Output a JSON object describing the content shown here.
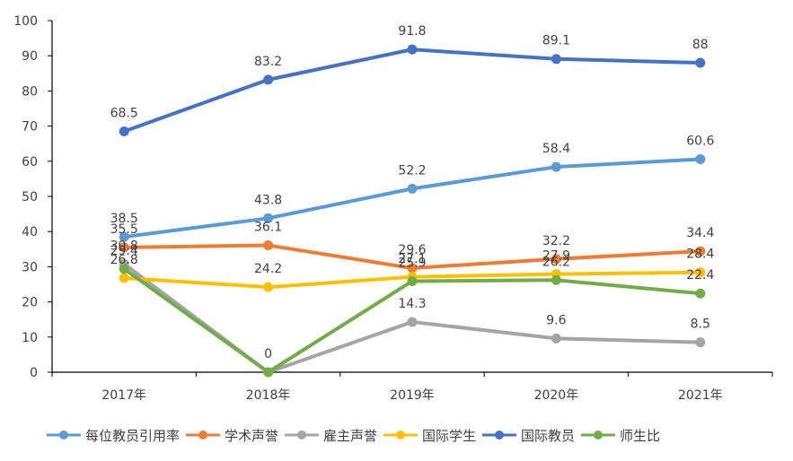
{
  "chart_data": {
    "type": "line",
    "categories": [
      "2017年",
      "2018年",
      "2019年",
      "2020年",
      "2021年"
    ],
    "ylim": [
      0,
      100
    ],
    "yticks": [
      0,
      10,
      20,
      30,
      40,
      50,
      60,
      70,
      80,
      90,
      100
    ],
    "grid": false,
    "legend_position": "bottom",
    "series": [
      {
        "name": "每位教员引用率",
        "color": "#5B9BD5",
        "values": [
          38.5,
          43.8,
          52.2,
          58.4,
          60.6
        ]
      },
      {
        "name": "学术声誉",
        "color": "#ED7D31",
        "values": [
          35.5,
          36.1,
          29.6,
          32.2,
          34.4
        ]
      },
      {
        "name": "雇主声誉",
        "color": "#A5A5A5",
        "values": [
          30.8,
          0,
          14.3,
          9.6,
          8.5
        ]
      },
      {
        "name": "国际学生",
        "color": "#FFC000",
        "values": [
          26.8,
          24.2,
          27.1,
          27.9,
          28.4
        ]
      },
      {
        "name": "国际教员",
        "color": "#4472C4",
        "values": [
          68.5,
          83.2,
          91.8,
          89.1,
          88
        ]
      },
      {
        "name": "师生比",
        "color": "#70AD47",
        "values": [
          29.4,
          0,
          25.9,
          26.2,
          22.4
        ]
      }
    ],
    "data_labels": [
      {
        "text": "68.5",
        "series": 4,
        "index": 0
      },
      {
        "text": "83.2",
        "series": 4,
        "index": 1
      },
      {
        "text": "91.8",
        "series": 4,
        "index": 2
      },
      {
        "text": "89.1",
        "series": 4,
        "index": 3
      },
      {
        "text": "88",
        "series": 4,
        "index": 4
      },
      {
        "text": "38.5",
        "series": 0,
        "index": 0
      },
      {
        "text": "43.8",
        "series": 0,
        "index": 1
      },
      {
        "text": "52.2",
        "series": 0,
        "index": 2
      },
      {
        "text": "58.4",
        "series": 0,
        "index": 3
      },
      {
        "text": "60.6",
        "series": 0,
        "index": 4
      },
      {
        "text": "35.5",
        "series": 1,
        "index": 0
      },
      {
        "text": "36.1",
        "series": 1,
        "index": 1
      },
      {
        "text": "29.6",
        "series": 1,
        "index": 2
      },
      {
        "text": "32.2",
        "series": 1,
        "index": 3
      },
      {
        "text": "34.4",
        "series": 1,
        "index": 4
      },
      {
        "text": "30.8",
        "series": 2,
        "index": 0
      },
      {
        "text": "0",
        "series": 2,
        "index": 1
      },
      {
        "text": "14.3",
        "series": 2,
        "index": 2
      },
      {
        "text": "9.6",
        "series": 2,
        "index": 3
      },
      {
        "text": "8.5",
        "series": 2,
        "index": 4
      },
      {
        "text": "26.8",
        "series": 3,
        "index": 0
      },
      {
        "text": "24.2",
        "series": 3,
        "index": 1
      },
      {
        "text": "27.1",
        "series": 3,
        "index": 2
      },
      {
        "text": "27.9",
        "series": 3,
        "index": 3
      },
      {
        "text": "28.4",
        "series": 3,
        "index": 4
      },
      {
        "text": "29.4",
        "series": 5,
        "index": 0
      },
      {
        "text": "25.9",
        "series": 5,
        "index": 2
      },
      {
        "text": "26.2",
        "series": 5,
        "index": 3
      },
      {
        "text": "22.4",
        "series": 5,
        "index": 4
      }
    ]
  }
}
